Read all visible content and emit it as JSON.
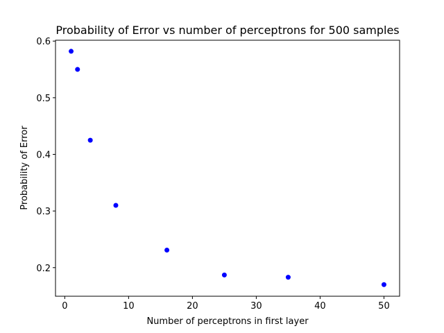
{
  "chart_data": {
    "type": "scatter",
    "title": "Probability of Error vs number of perceptrons for 500 samples",
    "xlabel": "Number of perceptrons in first layer",
    "ylabel": "Probability of Error",
    "xlim": [
      -1.45,
      52.45
    ],
    "ylim": [
      0.1495,
      0.6015
    ],
    "xticks": [
      0,
      10,
      20,
      30,
      40,
      50
    ],
    "yticks": [
      0.2,
      0.3,
      0.4,
      0.5,
      0.6
    ],
    "ytick_labels": [
      "0.2",
      "0.3",
      "0.4",
      "0.5",
      "0.6"
    ],
    "grid": false,
    "series": [
      {
        "color": "#0000ff",
        "x": [
          1,
          2,
          4,
          8,
          16,
          25,
          35,
          50
        ],
        "y": [
          0.582,
          0.55,
          0.425,
          0.31,
          0.231,
          0.187,
          0.183,
          0.17
        ]
      }
    ]
  }
}
